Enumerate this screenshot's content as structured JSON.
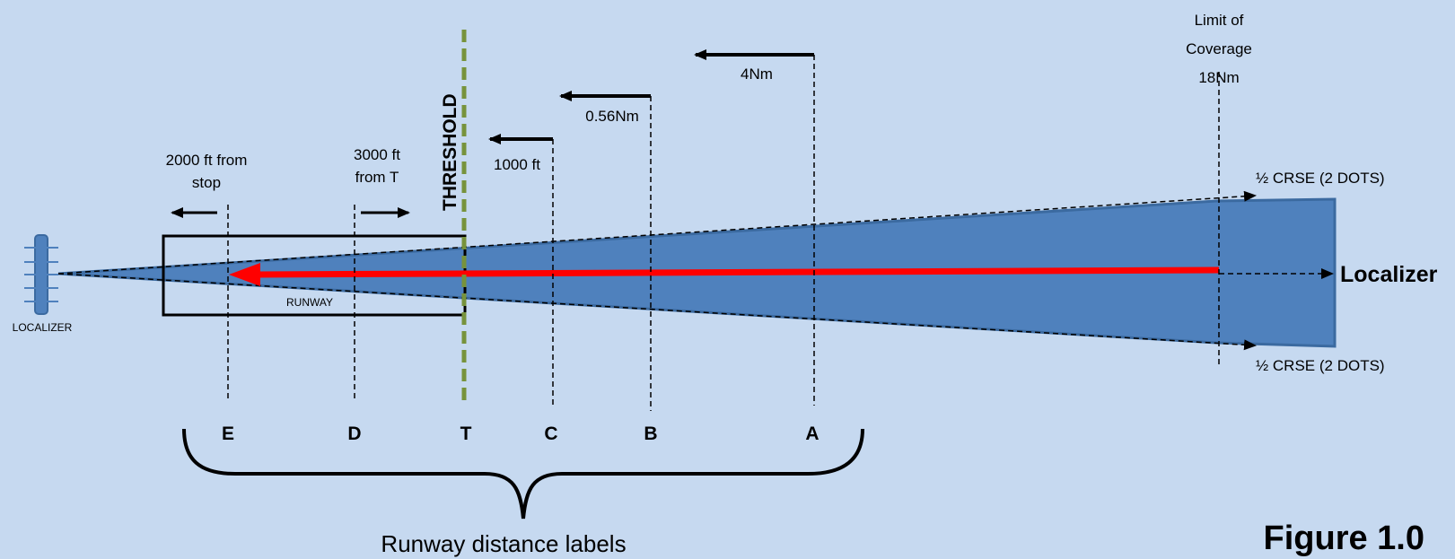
{
  "markers": [
    {
      "letter": "E",
      "label_lines": [
        "2000 ft from",
        "stop"
      ]
    },
    {
      "letter": "D",
      "label_lines": [
        "3000 ft",
        "from T"
      ]
    },
    {
      "letter": "T",
      "label_lines": [
        "THRESHOLD"
      ]
    },
    {
      "letter": "C",
      "label_lines": [
        "1000 ft"
      ]
    },
    {
      "letter": "B",
      "label_lines": [
        "0.56Nm"
      ]
    },
    {
      "letter": "A",
      "label_lines": [
        "4Nm"
      ]
    }
  ],
  "limit": {
    "lines": [
      "Limit of",
      "Coverage",
      "18Nm"
    ]
  },
  "runway_label": "RUNWAY",
  "localizer_antenna_label": "LOCALIZER",
  "localizer_course_label": "Localizer",
  "half_course_top": "½ CRSE (2 DOTS)",
  "half_course_bottom": "½ CRSE (2 DOTS)",
  "brace_label": "Runway distance labels",
  "figure_label": "Figure 1.0",
  "colors": {
    "background": "#c6d9f0",
    "beam": "#4f81bd",
    "beam_edge": "#3b6aa0",
    "course_line": "#ff0000",
    "threshold": "#77933c"
  }
}
